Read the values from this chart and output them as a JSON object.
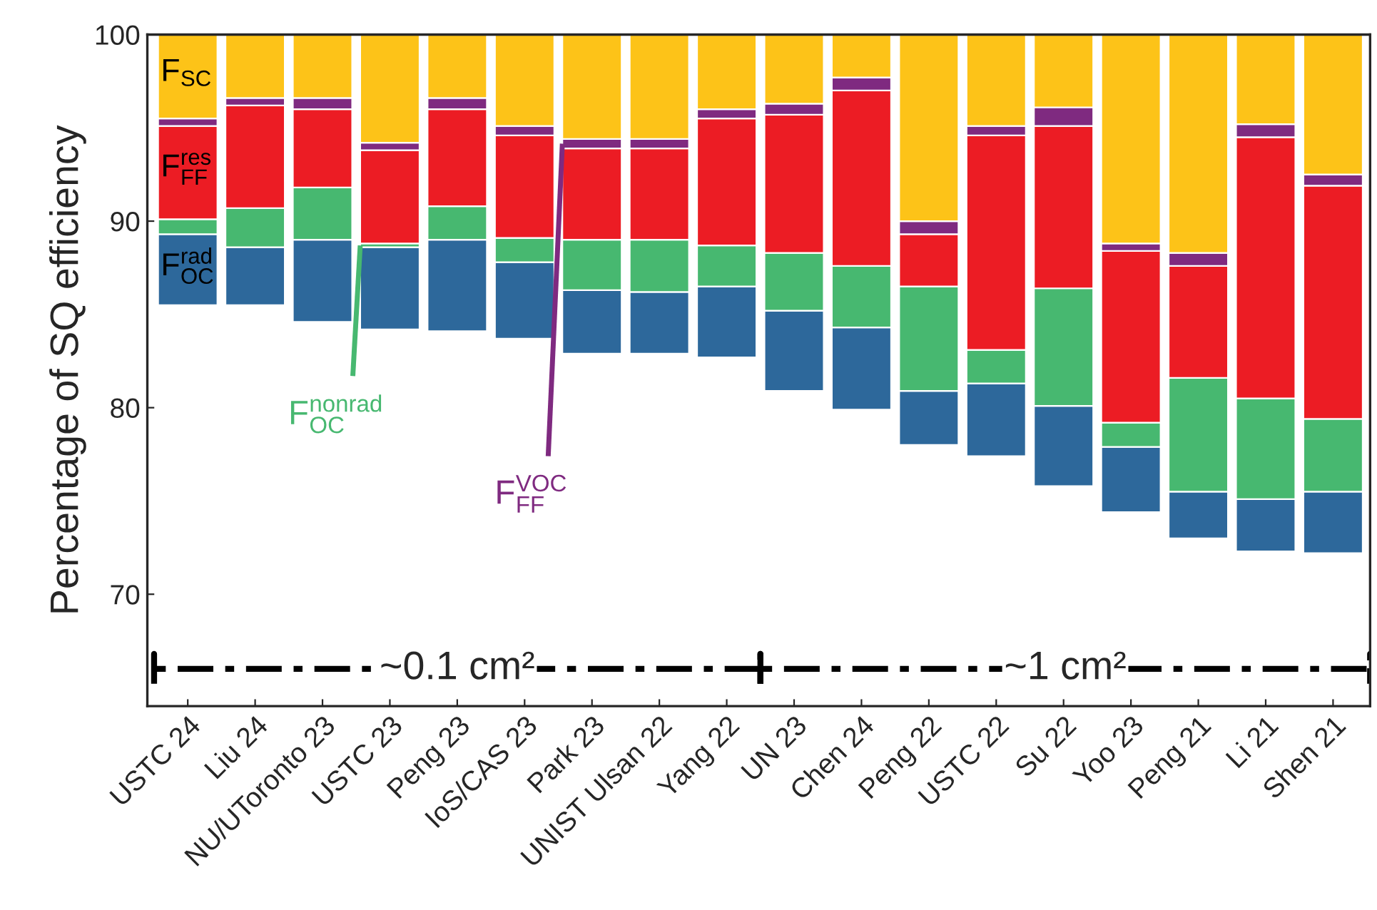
{
  "chart_data": {
    "type": "bar",
    "ylabel": "Percentage of SQ efficiency",
    "categories": [
      "USTC 24",
      "Liu 24",
      "NU/UToronto 23",
      "USTC 23",
      "Peng 23",
      "IoS/CAS 23",
      "Park 23",
      "UNIST Ulsan 22",
      "Yang 22",
      "UN 23",
      "Chen 24",
      "Peng 22",
      "USTC 22",
      "Su 22",
      "Yoo 23",
      "Peng 21",
      "Li 21",
      "Shen 21"
    ],
    "series": [
      {
        "name": "F$^{rad}$$_{OC}$",
        "color": "#2d689b",
        "base": [
          85.5,
          85.5,
          84.6,
          84.2,
          84.1,
          83.7,
          82.9,
          82.9,
          82.7,
          80.9,
          79.9,
          78.0,
          77.4,
          75.8,
          74.4,
          73.0,
          72.3,
          72.2
        ],
        "values": [
          3.8,
          3.1,
          4.4,
          4.4,
          4.9,
          4.1,
          3.4,
          3.3,
          3.8,
          4.3,
          4.4,
          2.9,
          3.9,
          4.3,
          3.5,
          2.5,
          2.8,
          3.3
        ]
      },
      {
        "name": "F$^{nonrad}$$_{OC}$",
        "color": "#47b870",
        "base": [
          89.3,
          88.6,
          89.0,
          88.6,
          89.0,
          87.8,
          86.3,
          86.2,
          86.5,
          85.2,
          84.3,
          80.9,
          81.3,
          80.1,
          77.9,
          75.5,
          75.1,
          75.5
        ],
        "values": [
          0.8,
          2.1,
          2.8,
          0.2,
          1.8,
          1.3,
          2.7,
          2.8,
          2.2,
          3.1,
          3.3,
          5.6,
          1.8,
          6.3,
          1.3,
          6.1,
          5.4,
          3.9
        ]
      },
      {
        "name": "F$^{res}$$_{FF}$",
        "color": "#ec1c24",
        "base": [
          90.1,
          90.7,
          91.8,
          88.8,
          90.8,
          89.1,
          89.0,
          89.0,
          88.7,
          88.3,
          87.6,
          86.5,
          83.1,
          86.4,
          79.2,
          81.6,
          80.5,
          79.4
        ],
        "values": [
          5.0,
          5.5,
          4.2,
          5.0,
          5.2,
          5.5,
          4.9,
          4.9,
          6.8,
          7.4,
          9.4,
          2.8,
          11.5,
          8.7,
          9.2,
          6.0,
          14.0,
          12.5
        ]
      },
      {
        "name": "F$^{VOC}$$_{FF}$",
        "color": "#7f2a80",
        "base": [
          95.1,
          96.2,
          96.0,
          93.8,
          96.0,
          94.6,
          93.9,
          93.9,
          95.5,
          95.7,
          97.0,
          89.3,
          94.6,
          95.1,
          88.4,
          87.6,
          94.5,
          91.9
        ],
        "values": [
          0.4,
          0.4,
          0.6,
          0.4,
          0.6,
          0.5,
          0.5,
          0.5,
          0.5,
          0.6,
          0.7,
          0.7,
          0.5,
          1.0,
          0.4,
          0.7,
          0.7,
          0.6
        ]
      },
      {
        "name": "F$_{SC}$",
        "color": "#fdc318",
        "base": [
          95.5,
          96.6,
          96.6,
          94.2,
          96.6,
          95.1,
          94.4,
          94.4,
          96.0,
          96.3,
          97.7,
          90.0,
          95.1,
          96.1,
          88.8,
          88.3,
          95.2,
          92.5
        ],
        "values": [
          4.5,
          3.4,
          3.4,
          5.8,
          3.4,
          4.9,
          5.6,
          5.6,
          4.0,
          3.7,
          2.3,
          10.0,
          4.9,
          3.9,
          11.2,
          11.7,
          4.8,
          7.5
        ]
      }
    ],
    "ylim": [
      64,
      100
    ],
    "yticks": [
      70,
      80,
      90,
      100
    ],
    "annotations": [
      "~0.1 cm²",
      "~1 cm²"
    ]
  }
}
